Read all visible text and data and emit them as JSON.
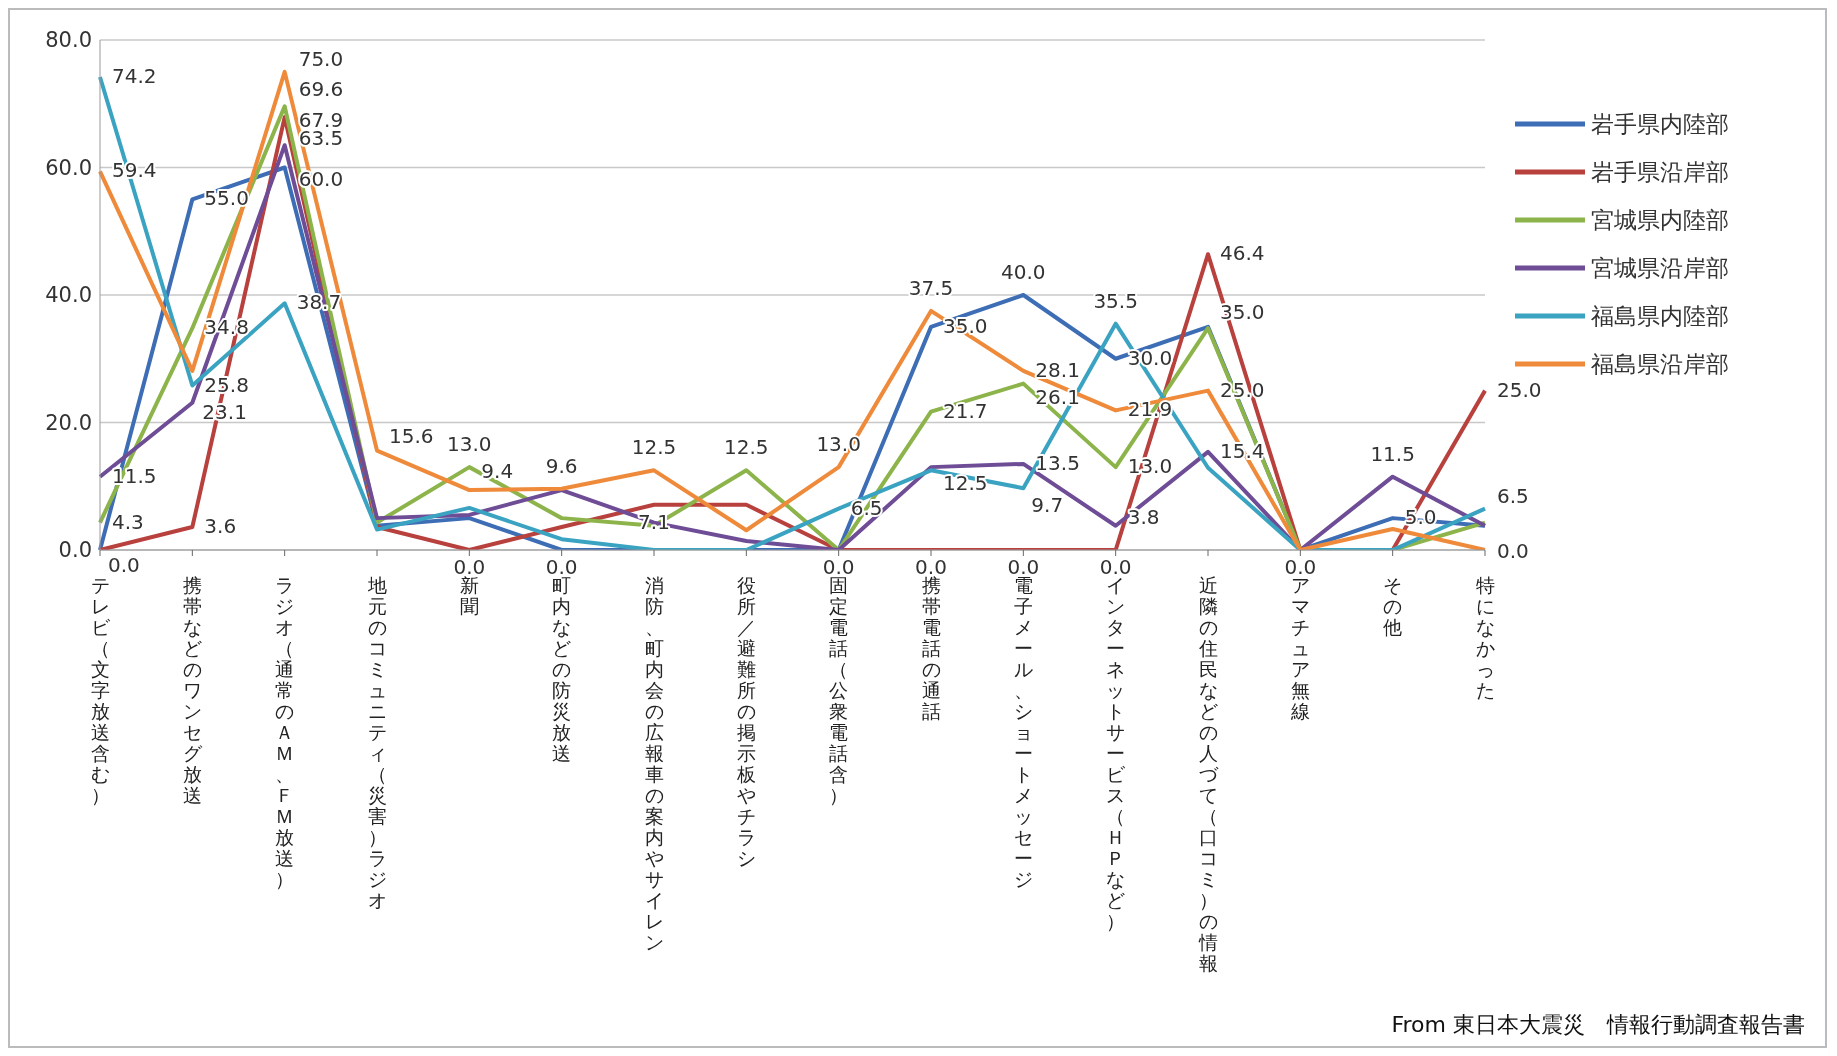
{
  "chart_data": {
    "type": "line",
    "categories": [
      "テレビ（文字放送含む）",
      "携帯などのワンセグ放送",
      "ラジオ（通常のＡＭ、ＦＭ放送）",
      "地元のコミュニティ（災害）ラジオ",
      "新聞",
      "町内などの防災放送",
      "消防、町内会の広報車の案内やサイレン",
      "役所／避難所の掲示板やチラシ",
      "固定電話（公衆電話含）",
      "携帯電話の通話",
      "電子メール、ショートメッセージ",
      "インターネットサービス（ＨＰなど）",
      "近隣の住民などの人づて（口コミ）の情報",
      "アマチュア無線",
      "その他",
      "特になかった"
    ],
    "series": [
      {
        "name": "岩手県内陸部",
        "color": "#3d6db5",
        "values": [
          0.0,
          55.0,
          60.0,
          3.8,
          5.0,
          0.0,
          0.0,
          0.0,
          0.0,
          35.0,
          40.0,
          30.0,
          35.0,
          0.0,
          5.0,
          3.8
        ],
        "value_labels": [
          null,
          "55.0",
          "60.0",
          null,
          null,
          "0.0",
          null,
          null,
          null,
          "35.0",
          "40.0",
          "30.0",
          "35.0",
          null,
          "5.0",
          null
        ]
      },
      {
        "name": "岩手県沿岸部",
        "color": "#b8413e",
        "values": [
          0.0,
          3.6,
          67.9,
          3.6,
          0.0,
          3.6,
          7.1,
          7.1,
          0.0,
          0.0,
          0.0,
          0.0,
          46.4,
          0.0,
          0.0,
          25.0
        ],
        "value_labels": [
          "0.0",
          "3.6",
          "67.9",
          null,
          "0.0",
          null,
          "7.1",
          null,
          "0.0",
          "0.0",
          "0.0",
          "0.0",
          "46.4",
          "0.0",
          null,
          "25.0"
        ]
      },
      {
        "name": "宮城県内陸部",
        "color": "#8cb44a",
        "values": [
          4.3,
          34.8,
          69.6,
          4.3,
          13.0,
          5.0,
          3.8,
          12.5,
          0.0,
          21.7,
          26.1,
          13.0,
          34.8,
          0.0,
          0.0,
          4.3
        ],
        "value_labels": [
          "4.3",
          "34.8",
          "69.6",
          null,
          "13.0",
          null,
          null,
          "12.5",
          null,
          "21.7",
          "26.1",
          "13.0",
          null,
          null,
          null,
          null
        ]
      },
      {
        "name": "宮城県沿岸部",
        "color": "#6e4d96",
        "values": [
          11.5,
          23.1,
          63.5,
          5.0,
          5.5,
          9.4,
          4.3,
          1.4,
          0.0,
          13.0,
          13.5,
          3.8,
          15.4,
          0.0,
          11.5,
          3.8
        ],
        "value_labels": [
          "11.5",
          "23.1",
          "63.5",
          null,
          null,
          null,
          null,
          null,
          null,
          null,
          "13.5",
          "3.8",
          "15.4",
          null,
          "11.5",
          null
        ]
      },
      {
        "name": "福島県内陸部",
        "color": "#3ba3c2",
        "values": [
          74.2,
          25.8,
          38.7,
          3.2,
          6.6,
          1.7,
          0.0,
          0.0,
          6.5,
          12.5,
          9.7,
          35.5,
          12.9,
          0.0,
          0.0,
          6.5
        ],
        "value_labels": [
          "74.2",
          "25.8",
          "38.7",
          null,
          null,
          null,
          null,
          null,
          "6.5",
          "12.5",
          "9.7",
          "35.5",
          null,
          null,
          null,
          "6.5"
        ]
      },
      {
        "name": "福島県沿岸部",
        "color": "#ee8a3a",
        "values": [
          59.4,
          28.1,
          75.0,
          15.6,
          9.4,
          9.6,
          12.5,
          3.1,
          13.0,
          37.5,
          28.1,
          21.9,
          25.0,
          0.0,
          3.3,
          0.0
        ],
        "value_labels": [
          "59.4",
          null,
          "75.0",
          "15.6",
          "9.4",
          "9.6",
          "12.5",
          null,
          "13.0",
          "37.5",
          "28.1",
          "21.9",
          "25.0",
          null,
          null,
          "0.0"
        ]
      }
    ],
    "ylim": [
      0,
      80
    ],
    "yticks": [
      {
        "value": 0,
        "label": "0.0"
      },
      {
        "value": 20,
        "label": "20.0"
      },
      {
        "value": 40,
        "label": "40.0"
      },
      {
        "value": 60,
        "label": "60.0"
      },
      {
        "value": 80,
        "label": "80.0"
      }
    ],
    "grid": "y",
    "legend": "right",
    "marker": "none",
    "line_style": "solid",
    "annotations": [
      "From 東日本大震災　情報行動調査報告書"
    ]
  }
}
